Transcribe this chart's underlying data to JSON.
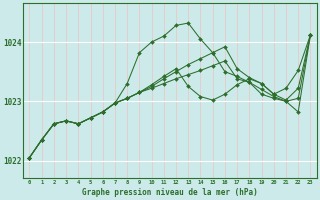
{
  "title": "Graphe pression niveau de la mer (hPa)",
  "bg_color": "#cceaea",
  "grid_color_v": "#e8c8c8",
  "grid_color_h": "#ffffff",
  "line_color": "#2d6e2d",
  "marker": "D",
  "marker_size": 2.0,
  "xlim": [
    -0.5,
    23.5
  ],
  "ylim": [
    1021.7,
    1024.65
  ],
  "yticks": [
    1022,
    1023,
    1024
  ],
  "xticks": [
    0,
    1,
    2,
    3,
    4,
    5,
    6,
    7,
    8,
    9,
    10,
    11,
    12,
    13,
    14,
    15,
    16,
    17,
    18,
    19,
    20,
    21,
    22,
    23
  ],
  "lines": [
    {
      "x": [
        0,
        1,
        2,
        3,
        4,
        5,
        6,
        7,
        8,
        9,
        10,
        11,
        12,
        13,
        14,
        15,
        16,
        17,
        18,
        19,
        20,
        21,
        22,
        23
      ],
      "y": [
        1022.05,
        1022.35,
        1022.62,
        1022.67,
        1022.62,
        1022.72,
        1022.82,
        1022.97,
        1023.3,
        1023.82,
        1024.0,
        1024.1,
        1024.28,
        1024.32,
        1024.05,
        1023.82,
        1023.5,
        1023.42,
        1023.32,
        1023.12,
        1023.05,
        1023.0,
        1022.82,
        1024.12
      ]
    },
    {
      "x": [
        0,
        1,
        2,
        3,
        4,
        5,
        6,
        7,
        8,
        9,
        10,
        11,
        12,
        13,
        14,
        15,
        16,
        17,
        18,
        19,
        20,
        21,
        22,
        23
      ],
      "y": [
        1022.05,
        1022.35,
        1022.62,
        1022.67,
        1022.62,
        1022.72,
        1022.82,
        1022.97,
        1023.05,
        1023.15,
        1023.25,
        1023.38,
        1023.5,
        1023.62,
        1023.72,
        1023.82,
        1023.92,
        1023.55,
        1023.4,
        1023.3,
        1023.12,
        1023.02,
        1023.22,
        1024.12
      ]
    },
    {
      "x": [
        0,
        1,
        2,
        3,
        4,
        5,
        6,
        7,
        8,
        9,
        10,
        11,
        12,
        13,
        14,
        15,
        16,
        17,
        18,
        19,
        20,
        21,
        22,
        23
      ],
      "y": [
        1022.05,
        1022.35,
        1022.62,
        1022.67,
        1022.62,
        1022.72,
        1022.82,
        1022.97,
        1023.05,
        1023.15,
        1023.28,
        1023.42,
        1023.55,
        1023.25,
        1023.08,
        1023.02,
        1023.12,
        1023.28,
        1023.38,
        1023.3,
        1023.12,
        1023.22,
        1023.52,
        1024.12
      ]
    },
    {
      "x": [
        0,
        1,
        2,
        3,
        4,
        5,
        6,
        7,
        8,
        9,
        10,
        11,
        12,
        13,
        14,
        15,
        16,
        17,
        18,
        19,
        20,
        21,
        22,
        23
      ],
      "y": [
        1022.05,
        1022.35,
        1022.62,
        1022.67,
        1022.62,
        1022.72,
        1022.82,
        1022.97,
        1023.05,
        1023.15,
        1023.22,
        1023.3,
        1023.38,
        1023.45,
        1023.52,
        1023.6,
        1023.68,
        1023.38,
        1023.32,
        1023.2,
        1023.08,
        1023.0,
        1023.05,
        1024.12
      ]
    }
  ]
}
